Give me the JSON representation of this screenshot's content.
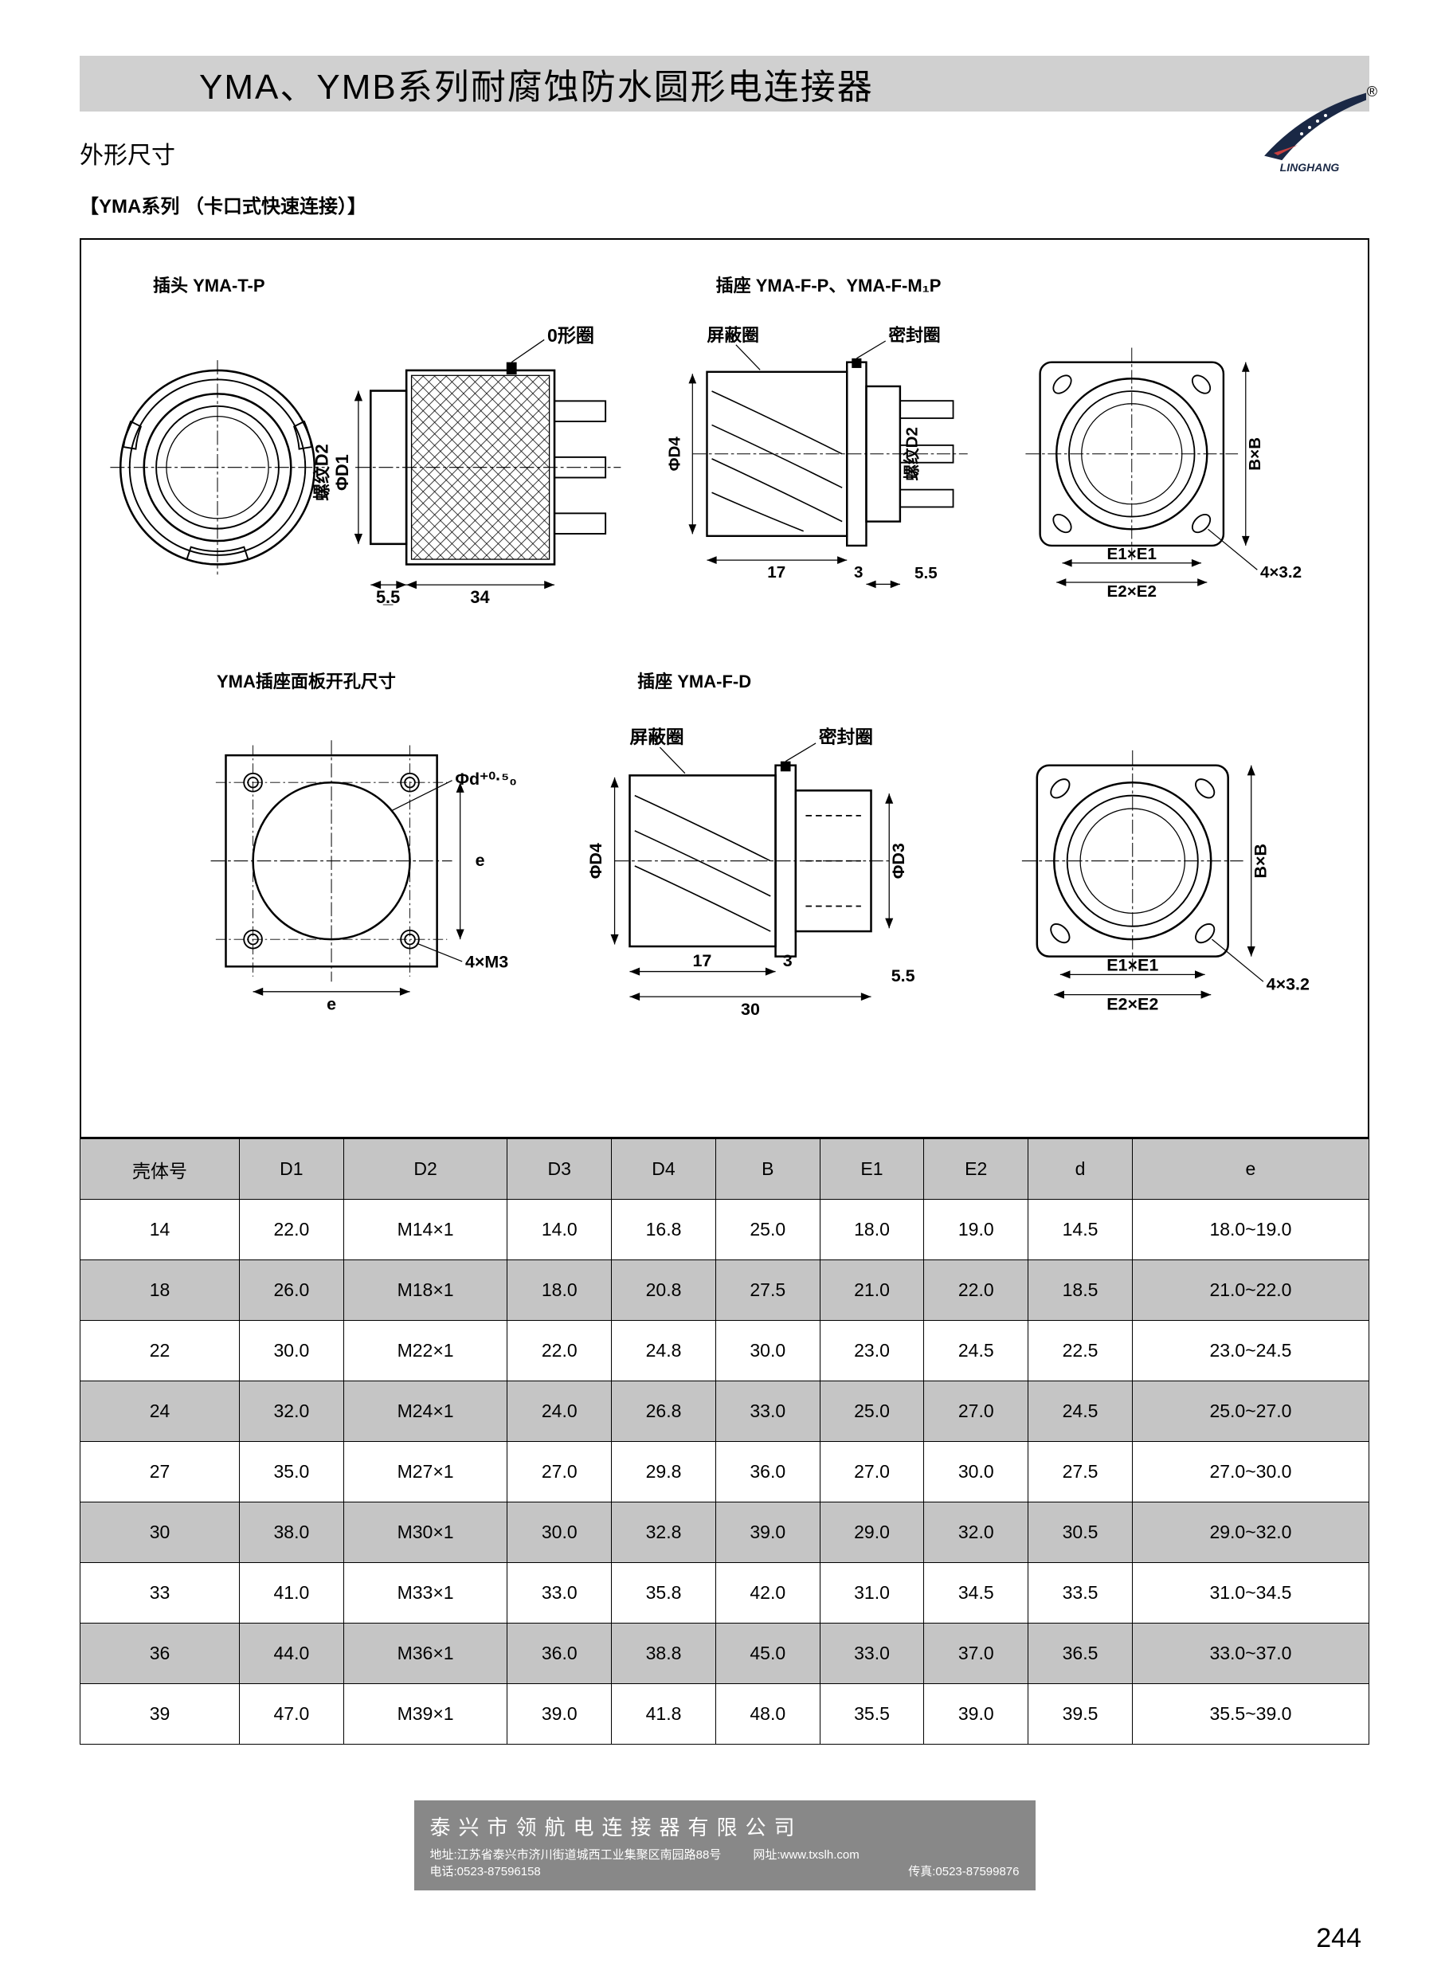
{
  "header": {
    "title": "YMA、YMB系列耐腐蚀防水圆形电连接器",
    "logo_brand": "LINGHANG",
    "reg_mark": "®"
  },
  "section_label": "外形尺寸",
  "series_label": "【YMA系列 （卡口式快速连接）】",
  "diagrams": {
    "plug": {
      "title": "插头 YMA-T-P",
      "callouts": {
        "oring": "0形圈"
      },
      "dims": {
        "d1": "ΦD1",
        "d2": "螺纹D2",
        "w1": "5.5",
        "w2": "34"
      }
    },
    "socket_p": {
      "title": "插座 YMA-F-P、YMA-F-M₁P",
      "callouts": {
        "shield": "屏蔽圈",
        "seal": "密封圈"
      },
      "dims": {
        "d4": "ΦD4",
        "d2": "螺纹D2",
        "b": "B×B",
        "w1": "17",
        "w2": "3",
        "w3": "5.5",
        "e1": "E1×E1",
        "e2": "E2×E2",
        "h": "4×3.2"
      }
    },
    "panel": {
      "title": "YMA插座面板开孔尺寸",
      "dims": {
        "d": "Φd⁺⁰·⁵₀",
        "e": "e",
        "m": "4×M3"
      }
    },
    "socket_d": {
      "title": "插座 YMA-F-D",
      "callouts": {
        "shield": "屏蔽圈",
        "seal": "密封圈"
      },
      "dims": {
        "d4": "ΦD4",
        "d3": "ΦD3",
        "b": "B×B",
        "w1": "17",
        "w2": "3",
        "w3": "5.5",
        "w4": "30",
        "e1": "E1×E1",
        "e2": "E2×E2",
        "h": "4×3.2"
      }
    }
  },
  "table": {
    "columns": [
      "壳体号",
      "D1",
      "D2",
      "D3",
      "D4",
      "B",
      "E1",
      "E2",
      "d",
      "e"
    ],
    "rows": [
      [
        "14",
        "22.0",
        "M14×1",
        "14.0",
        "16.8",
        "25.0",
        "18.0",
        "19.0",
        "14.5",
        "18.0~19.0"
      ],
      [
        "18",
        "26.0",
        "M18×1",
        "18.0",
        "20.8",
        "27.5",
        "21.0",
        "22.0",
        "18.5",
        "21.0~22.0"
      ],
      [
        "22",
        "30.0",
        "M22×1",
        "22.0",
        "24.8",
        "30.0",
        "23.0",
        "24.5",
        "22.5",
        "23.0~24.5"
      ],
      [
        "24",
        "32.0",
        "M24×1",
        "24.0",
        "26.8",
        "33.0",
        "25.0",
        "27.0",
        "24.5",
        "25.0~27.0"
      ],
      [
        "27",
        "35.0",
        "M27×1",
        "27.0",
        "29.8",
        "36.0",
        "27.0",
        "30.0",
        "27.5",
        "27.0~30.0"
      ],
      [
        "30",
        "38.0",
        "M30×1",
        "30.0",
        "32.8",
        "39.0",
        "29.0",
        "32.0",
        "30.5",
        "29.0~32.0"
      ],
      [
        "33",
        "41.0",
        "M33×1",
        "33.0",
        "35.8",
        "42.0",
        "31.0",
        "34.5",
        "33.5",
        "31.0~34.5"
      ],
      [
        "36",
        "44.0",
        "M36×1",
        "36.0",
        "38.8",
        "45.0",
        "33.0",
        "37.0",
        "36.5",
        "33.0~37.0"
      ],
      [
        "39",
        "47.0",
        "M39×1",
        "39.0",
        "41.8",
        "48.0",
        "35.5",
        "39.0",
        "39.5",
        "35.5~39.0"
      ]
    ],
    "header_bg": "#c5c5c5",
    "row_alt_bg": "#c5c5c5",
    "row_bg": "#ffffff",
    "border_color": "#000000",
    "font_size": 23
  },
  "footer": {
    "company": "泰兴市领航电连接器有限公司",
    "addr_label": "地址:",
    "addr": "江苏省泰兴市济川街道城西工业集聚区南园路88号",
    "web_label": "网址:",
    "web": "www.txslh.com",
    "tel_label": "电话:",
    "tel": "0523-87596158",
    "fax_label": "传真:",
    "fax": "0523-87599876"
  },
  "page_number": "244",
  "colors": {
    "header_bar": "#d0d0d0",
    "diagram_border": "#000000",
    "footer_bg": "#888888",
    "text": "#000000"
  }
}
